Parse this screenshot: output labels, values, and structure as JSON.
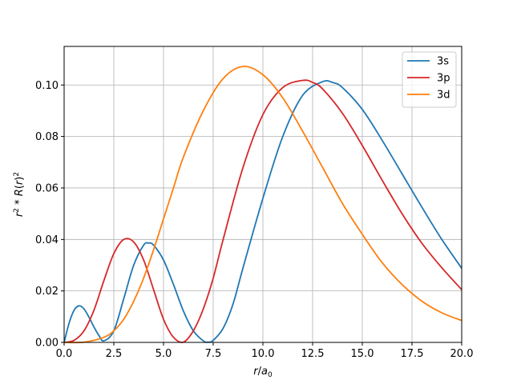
{
  "chart_data": {
    "type": "line",
    "xlabel": "r/a0",
    "ylabel": "r^2 * R(r)^2",
    "xlim": [
      0,
      20
    ],
    "ylim": [
      0,
      0.115
    ],
    "xticks": [
      0,
      2.5,
      5,
      7.5,
      10,
      12.5,
      15,
      17.5,
      20
    ],
    "xtick_labels": [
      "0.0",
      "2.5",
      "5.0",
      "7.5",
      "10.0",
      "12.5",
      "15.0",
      "17.5",
      "20.0"
    ],
    "yticks": [
      0,
      0.02,
      0.04,
      0.06,
      0.08,
      0.1
    ],
    "ytick_labels": [
      "0.00",
      "0.02",
      "0.04",
      "0.06",
      "0.08",
      "0.10"
    ],
    "grid": true,
    "legend_position": "top-right",
    "series": [
      {
        "name": "3s",
        "color": "#1f77b4",
        "x": [
          0,
          0.25,
          0.5,
          0.75,
          1.0,
          1.25,
          1.5,
          1.75,
          2.0,
          2.5,
          3.0,
          3.5,
          4.0,
          4.25,
          4.5,
          5.0,
          5.5,
          6.0,
          6.5,
          7.0,
          7.25,
          7.5,
          8.0,
          8.5,
          9.0,
          10.0,
          11.0,
          12.0,
          13.0,
          13.5,
          14.0,
          15.0,
          16.0,
          17.0,
          18.0,
          19.0,
          20.0
        ],
        "y": [
          0,
          0.0075,
          0.0125,
          0.0142,
          0.013,
          0.0098,
          0.006,
          0.0027,
          0.0006,
          0.0045,
          0.017,
          0.03,
          0.0378,
          0.0386,
          0.0378,
          0.032,
          0.0225,
          0.0122,
          0.0045,
          0.0006,
          0.0001,
          0.0008,
          0.0055,
          0.015,
          0.029,
          0.056,
          0.08,
          0.096,
          0.1013,
          0.101,
          0.099,
          0.0905,
          0.0785,
          0.0655,
          0.0525,
          0.04,
          0.0288
        ]
      },
      {
        "name": "3p",
        "color": "#d62728",
        "x": [
          0,
          0.5,
          1.0,
          1.5,
          2.0,
          2.5,
          3.0,
          3.5,
          4.0,
          4.5,
          5.0,
          5.5,
          6.0,
          6.5,
          7.0,
          7.5,
          8.0,
          9.0,
          10.0,
          11.0,
          12.0,
          12.5,
          13.0,
          14.0,
          15.0,
          16.0,
          17.0,
          18.0,
          19.0,
          20.0
        ],
        "y": [
          0,
          0.0008,
          0.0045,
          0.0125,
          0.024,
          0.0345,
          0.04,
          0.039,
          0.032,
          0.0205,
          0.009,
          0.002,
          0.0001,
          0.0045,
          0.013,
          0.025,
          0.04,
          0.068,
          0.0885,
          0.099,
          0.1018,
          0.101,
          0.0985,
          0.089,
          0.0765,
          0.063,
          0.05,
          0.0385,
          0.029,
          0.0205
        ]
      },
      {
        "name": "3d",
        "color": "#ff7f0e",
        "x": [
          0,
          1.0,
          2.0,
          2.5,
          3.0,
          3.5,
          4.0,
          4.5,
          5.0,
          5.5,
          6.0,
          7.0,
          8.0,
          9.0,
          10.0,
          11.0,
          12.0,
          13.0,
          14.0,
          15.0,
          16.0,
          17.0,
          18.0,
          19.0,
          20.0
        ],
        "y": [
          0,
          0.0001,
          0.002,
          0.0045,
          0.009,
          0.016,
          0.025,
          0.036,
          0.048,
          0.06,
          0.072,
          0.09,
          0.1025,
          0.1072,
          0.104,
          0.095,
          0.082,
          0.068,
          0.054,
          0.042,
          0.031,
          0.0225,
          0.016,
          0.0115,
          0.0085
        ]
      }
    ]
  }
}
